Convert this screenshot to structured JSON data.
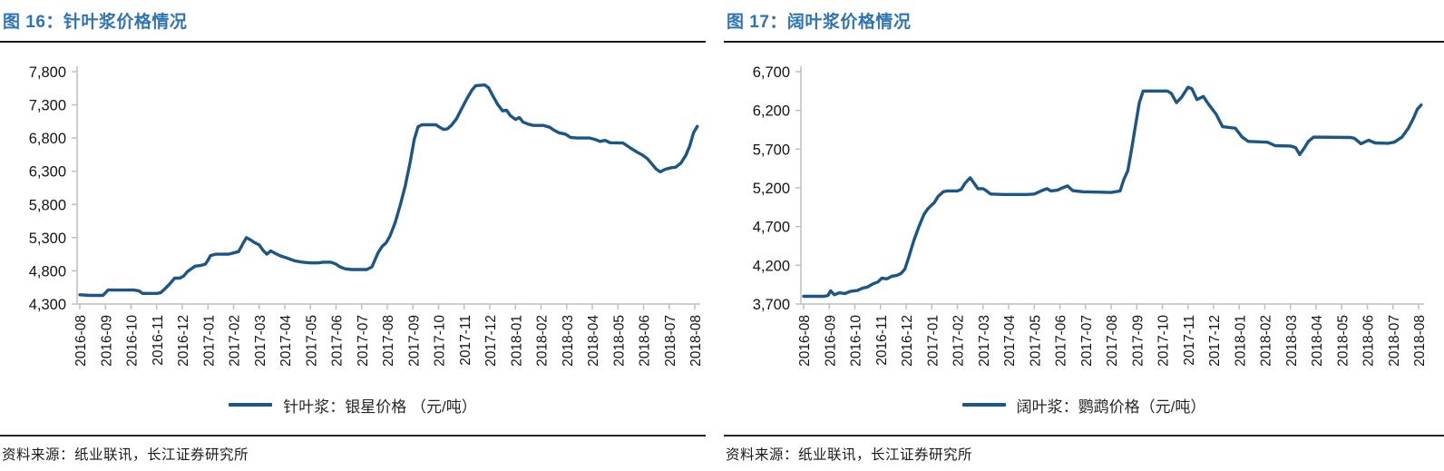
{
  "colors": {
    "line": "#1C5687",
    "title": "#2E74B5",
    "axis": "#BFBFBF",
    "tick_label": "#141414",
    "rule": "#1a1a1a"
  },
  "figures": [
    {
      "title": "图 16：针叶浆价格情况",
      "source": "资料来源：纸业联讯，长江证券研究所",
      "chart_data": {
        "type": "line",
        "title": "针叶浆价格情况",
        "xlabel": "",
        "ylabel": "元/吨",
        "ylim": [
          4300,
          7800
        ],
        "ytick_step": 500,
        "grid": false,
        "legend_position": "bottom",
        "x_tick_labels": [
          "2016-08",
          "2016-09",
          "2016-10",
          "2016-11",
          "2016-12",
          "2017-01",
          "2017-02",
          "2017-03",
          "2017-04",
          "2017-05",
          "2017-06",
          "2017-07",
          "2017-08",
          "2017-09",
          "2017-10",
          "2017-11",
          "2017-12",
          "2018-01",
          "2018-02",
          "2018-03",
          "2018-04",
          "2018-05",
          "2018-06",
          "2018-07",
          "2018-08"
        ],
        "series": [
          {
            "name": "针叶浆：银星价格 （元/吨）",
            "points": [
              [
                0,
                4440
              ],
              [
                0.4,
                4430
              ],
              [
                0.9,
                4430
              ],
              [
                1.0,
                4470
              ],
              [
                1.1,
                4510
              ],
              [
                1.6,
                4510
              ],
              [
                2.1,
                4510
              ],
              [
                2.3,
                4500
              ],
              [
                2.45,
                4460
              ],
              [
                3.0,
                4460
              ],
              [
                3.15,
                4470
              ],
              [
                3.3,
                4520
              ],
              [
                3.5,
                4600
              ],
              [
                3.7,
                4690
              ],
              [
                3.9,
                4690
              ],
              [
                4.05,
                4720
              ],
              [
                4.2,
                4790
              ],
              [
                4.35,
                4830
              ],
              [
                4.5,
                4870
              ],
              [
                4.7,
                4880
              ],
              [
                4.9,
                4900
              ],
              [
                5.0,
                4960
              ],
              [
                5.1,
                5030
              ],
              [
                5.3,
                5050
              ],
              [
                5.8,
                5050
              ],
              [
                6.0,
                5070
              ],
              [
                6.2,
                5090
              ],
              [
                6.35,
                5200
              ],
              [
                6.5,
                5300
              ],
              [
                6.65,
                5270
              ],
              [
                6.8,
                5230
              ],
              [
                7.0,
                5190
              ],
              [
                7.15,
                5110
              ],
              [
                7.3,
                5050
              ],
              [
                7.45,
                5100
              ],
              [
                7.6,
                5070
              ],
              [
                7.8,
                5030
              ],
              [
                8.1,
                4990
              ],
              [
                8.4,
                4950
              ],
              [
                8.7,
                4930
              ],
              [
                9.0,
                4920
              ],
              [
                9.3,
                4920
              ],
              [
                9.5,
                4930
              ],
              [
                9.8,
                4930
              ],
              [
                10.0,
                4900
              ],
              [
                10.15,
                4860
              ],
              [
                10.35,
                4830
              ],
              [
                10.6,
                4820
              ],
              [
                11.2,
                4820
              ],
              [
                11.4,
                4860
              ],
              [
                11.5,
                4950
              ],
              [
                11.65,
                5080
              ],
              [
                11.8,
                5170
              ],
              [
                11.95,
                5220
              ],
              [
                12.1,
                5320
              ],
              [
                12.3,
                5520
              ],
              [
                12.5,
                5780
              ],
              [
                12.7,
                6080
              ],
              [
                12.9,
                6450
              ],
              [
                13.05,
                6780
              ],
              [
                13.2,
                6970
              ],
              [
                13.35,
                7000
              ],
              [
                13.9,
                7000
              ],
              [
                14.05,
                6960
              ],
              [
                14.2,
                6930
              ],
              [
                14.35,
                6940
              ],
              [
                14.5,
                6990
              ],
              [
                14.7,
                7090
              ],
              [
                14.9,
                7240
              ],
              [
                15.1,
                7390
              ],
              [
                15.3,
                7520
              ],
              [
                15.45,
                7590
              ],
              [
                15.8,
                7600
              ],
              [
                15.95,
                7560
              ],
              [
                16.1,
                7450
              ],
              [
                16.3,
                7310
              ],
              [
                16.5,
                7210
              ],
              [
                16.65,
                7220
              ],
              [
                16.8,
                7140
              ],
              [
                17.0,
                7080
              ],
              [
                17.15,
                7110
              ],
              [
                17.3,
                7040
              ],
              [
                17.5,
                7010
              ],
              [
                17.7,
                6990
              ],
              [
                18.1,
                6990
              ],
              [
                18.35,
                6960
              ],
              [
                18.5,
                6920
              ],
              [
                18.7,
                6880
              ],
              [
                18.95,
                6860
              ],
              [
                19.15,
                6810
              ],
              [
                19.4,
                6800
              ],
              [
                19.9,
                6800
              ],
              [
                20.1,
                6780
              ],
              [
                20.3,
                6750
              ],
              [
                20.5,
                6765
              ],
              [
                20.7,
                6730
              ],
              [
                21.2,
                6725
              ],
              [
                21.45,
                6660
              ],
              [
                21.7,
                6600
              ],
              [
                21.95,
                6545
              ],
              [
                22.15,
                6490
              ],
              [
                22.3,
                6420
              ],
              [
                22.5,
                6330
              ],
              [
                22.65,
                6290
              ],
              [
                22.85,
                6330
              ],
              [
                23.1,
                6355
              ],
              [
                23.25,
                6360
              ],
              [
                23.45,
                6420
              ],
              [
                23.65,
                6540
              ],
              [
                23.8,
                6680
              ],
              [
                23.95,
                6880
              ],
              [
                24.1,
                6975
              ]
            ]
          }
        ]
      }
    },
    {
      "title": "图 17：阔叶浆价格情况",
      "source": "资料来源：纸业联讯，长江证券研究所",
      "chart_data": {
        "type": "line",
        "title": "阔叶浆价格情况",
        "xlabel": "",
        "ylabel": "元/吨",
        "ylim": [
          3700,
          6700
        ],
        "ytick_step": 500,
        "grid": false,
        "legend_position": "bottom",
        "x_tick_labels": [
          "2016-08",
          "2016-09",
          "2016-10",
          "2016-11",
          "2016-12",
          "2017-01",
          "2017-02",
          "2017-03",
          "2017-04",
          "2017-05",
          "2017-06",
          "2017-07",
          "2017-08",
          "2017-09",
          "2017-10",
          "2017-11",
          "2017-12",
          "2018-01",
          "2018-02",
          "2018-03",
          "2018-04",
          "2018-05",
          "2018-06",
          "2018-07",
          "2018-08"
        ],
        "series": [
          {
            "name": "阔叶浆：鹦鹉价格（元/吨）",
            "points": [
              [
                0,
                3800
              ],
              [
                0.8,
                3800
              ],
              [
                0.95,
                3810
              ],
              [
                1.05,
                3870
              ],
              [
                1.2,
                3820
              ],
              [
                1.4,
                3845
              ],
              [
                1.6,
                3835
              ],
              [
                1.85,
                3865
              ],
              [
                2.1,
                3875
              ],
              [
                2.3,
                3905
              ],
              [
                2.5,
                3920
              ],
              [
                2.7,
                3960
              ],
              [
                2.9,
                3985
              ],
              [
                3.05,
                4035
              ],
              [
                3.25,
                4025
              ],
              [
                3.45,
                4060
              ],
              [
                3.65,
                4070
              ],
              [
                3.8,
                4095
              ],
              [
                3.95,
                4150
              ],
              [
                4.1,
                4300
              ],
              [
                4.3,
                4520
              ],
              [
                4.5,
                4700
              ],
              [
                4.7,
                4860
              ],
              [
                4.85,
                4930
              ],
              [
                5.0,
                4980
              ],
              [
                5.1,
                5010
              ],
              [
                5.25,
                5090
              ],
              [
                5.45,
                5150
              ],
              [
                5.6,
                5160
              ],
              [
                6.0,
                5160
              ],
              [
                6.15,
                5180
              ],
              [
                6.3,
                5260
              ],
              [
                6.5,
                5330
              ],
              [
                6.65,
                5260
              ],
              [
                6.8,
                5190
              ],
              [
                7.0,
                5190
              ],
              [
                7.1,
                5170
              ],
              [
                7.3,
                5120
              ],
              [
                7.8,
                5115
              ],
              [
                8.3,
                5115
              ],
              [
                8.7,
                5115
              ],
              [
                9.0,
                5120
              ],
              [
                9.3,
                5165
              ],
              [
                9.5,
                5190
              ],
              [
                9.65,
                5160
              ],
              [
                9.9,
                5170
              ],
              [
                10.1,
                5200
              ],
              [
                10.3,
                5225
              ],
              [
                10.5,
                5165
              ],
              [
                10.9,
                5150
              ],
              [
                11.5,
                5145
              ],
              [
                12.0,
                5140
              ],
              [
                12.35,
                5160
              ],
              [
                12.5,
                5310
              ],
              [
                12.65,
                5420
              ],
              [
                12.8,
                5700
              ],
              [
                12.95,
                6000
              ],
              [
                13.1,
                6300
              ],
              [
                13.25,
                6450
              ],
              [
                13.4,
                6450
              ],
              [
                14.2,
                6450
              ],
              [
                14.35,
                6420
              ],
              [
                14.55,
                6300
              ],
              [
                14.75,
                6370
              ],
              [
                15.0,
                6500
              ],
              [
                15.15,
                6480
              ],
              [
                15.35,
                6340
              ],
              [
                15.6,
                6380
              ],
              [
                15.8,
                6280
              ],
              [
                16.1,
                6150
              ],
              [
                16.35,
                5990
              ],
              [
                16.85,
                5970
              ],
              [
                17.1,
                5860
              ],
              [
                17.35,
                5800
              ],
              [
                18.1,
                5790
              ],
              [
                18.4,
                5745
              ],
              [
                19.0,
                5740
              ],
              [
                19.2,
                5720
              ],
              [
                19.36,
                5630
              ],
              [
                19.55,
                5720
              ],
              [
                19.7,
                5800
              ],
              [
                19.9,
                5855
              ],
              [
                21.35,
                5850
              ],
              [
                21.5,
                5840
              ],
              [
                21.75,
                5770
              ],
              [
                22.05,
                5815
              ],
              [
                22.3,
                5780
              ],
              [
                22.8,
                5775
              ],
              [
                23.05,
                5790
              ],
              [
                23.35,
                5855
              ],
              [
                23.6,
                5970
              ],
              [
                23.8,
                6100
              ],
              [
                23.95,
                6215
              ],
              [
                24.1,
                6270
              ]
            ]
          }
        ]
      }
    }
  ]
}
